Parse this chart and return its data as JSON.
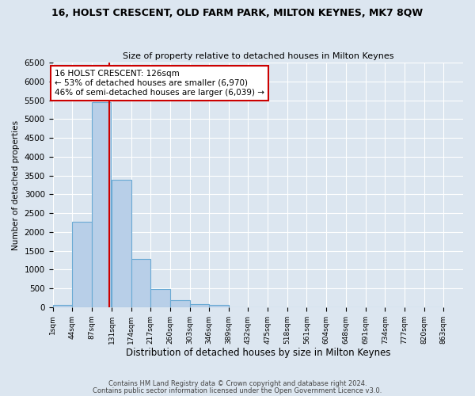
{
  "title1": "16, HOLST CRESCENT, OLD FARM PARK, MILTON KEYNES, MK7 8QW",
  "title2": "Size of property relative to detached houses in Milton Keynes",
  "xlabel": "Distribution of detached houses by size in Milton Keynes",
  "ylabel": "Number of detached properties",
  "bin_labels": [
    "1sqm",
    "44sqm",
    "87sqm",
    "131sqm",
    "174sqm",
    "217sqm",
    "260sqm",
    "303sqm",
    "346sqm",
    "389sqm",
    "432sqm",
    "475sqm",
    "518sqm",
    "561sqm",
    "604sqm",
    "648sqm",
    "691sqm",
    "734sqm",
    "777sqm",
    "820sqm",
    "863sqm"
  ],
  "bar_heights": [
    60,
    2280,
    5440,
    3380,
    1290,
    480,
    195,
    85,
    50,
    0,
    0,
    0,
    0,
    0,
    0,
    0,
    0,
    0,
    0,
    0
  ],
  "bar_color": "#b8cfe8",
  "bar_edgecolor": "#6aaad4",
  "bar_linewidth": 0.8,
  "vline_x": 126,
  "vline_color": "#cc0000",
  "annotation_text": "16 HOLST CRESCENT: 126sqm\n← 53% of detached houses are smaller (6,970)\n46% of semi-detached houses are larger (6,039) →",
  "annotation_box_facecolor": "#ffffff",
  "annotation_box_edgecolor": "#cc0000",
  "ylim": [
    0,
    6500
  ],
  "yticks": [
    0,
    500,
    1000,
    1500,
    2000,
    2500,
    3000,
    3500,
    4000,
    4500,
    5000,
    5500,
    6000,
    6500
  ],
  "background_color": "#dce6f0",
  "plot_bg_color": "#dce6f0",
  "grid_color": "#ffffff",
  "footer1": "Contains HM Land Registry data © Crown copyright and database right 2024.",
  "footer2": "Contains public sector information licensed under the Open Government Licence v3.0."
}
